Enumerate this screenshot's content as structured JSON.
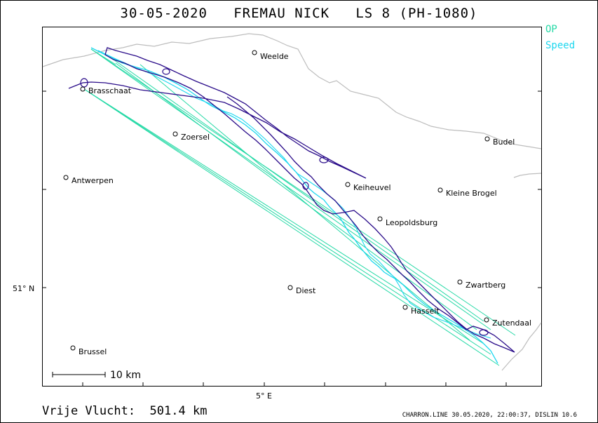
{
  "title": "30-05-2020   FREMAU NICK   LS 8 (PH-1080)",
  "legend": {
    "op": {
      "label": "OP",
      "color": "#25d9a6"
    },
    "speed": {
      "label": "Speed",
      "color": "#1ed7ef"
    }
  },
  "track_color": "#2b0d8a",
  "axes": {
    "lat_label": "51° N",
    "lon_label": "5° E"
  },
  "towns": [
    {
      "name": "Weelde"
    },
    {
      "name": "Brasschaat"
    },
    {
      "name": "Zoersel"
    },
    {
      "name": "Budel"
    },
    {
      "name": "Antwerpen"
    },
    {
      "name": "Keiheuvel"
    },
    {
      "name": "Kleine Brogel"
    },
    {
      "name": "Leopoldsburg"
    },
    {
      "name": "Zwartberg"
    },
    {
      "name": "Diest"
    },
    {
      "name": "Hasselt"
    },
    {
      "name": "Zutendaal"
    },
    {
      "name": "Brussel"
    }
  ],
  "scale_bar": {
    "label": "10  km"
  },
  "distance": {
    "label": "Vrije Vlucht:",
    "value": "501.4 km"
  },
  "footer": "CHARRON.LINE 30.05.2020, 22:00:37, DISLIN 10.6"
}
